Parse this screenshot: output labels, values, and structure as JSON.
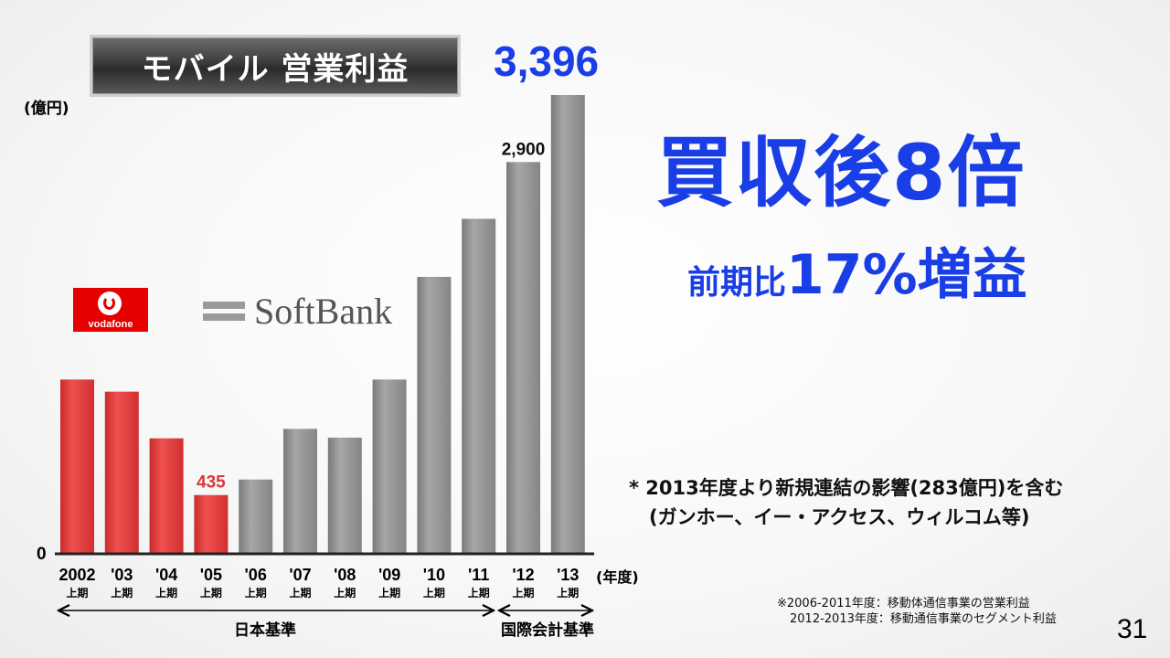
{
  "slide": {
    "title": "モバイル 営業利益",
    "unit": "(億円)",
    "big_value": "3,396",
    "headline": "買収後8倍",
    "sub_headline_a": "前期比",
    "sub_headline_b": "17%増益",
    "note_line1": "* 2013年度より新規連結の影響(283億円)を含む",
    "note_line2": "(ガンホー、イー・アクセス、ウィルコム等)",
    "footnote_line1": "※2006-2011年度：移動体通信事業の営業利益",
    "footnote_line2": "2012-2013年度：移動通信事業のセグメント利益",
    "page_number": "31",
    "vodafone_logo_text": "vodafone",
    "softbank_logo_text": "SoftBank",
    "x_unit": "(年度)",
    "period_label": "上期",
    "range_left_label": "日本基準",
    "range_right_label": "国際会計基準"
  },
  "chart_data": {
    "type": "bar",
    "categories": [
      "2002",
      "'03",
      "'04",
      "'05",
      "'06",
      "'07",
      "'08",
      "'09",
      "'10",
      "'11",
      "'12",
      "'13"
    ],
    "values": [
      1290,
      1200,
      855,
      435,
      550,
      925,
      860,
      1290,
      2050,
      2480,
      2900,
      3396
    ],
    "ylim": [
      0,
      3396
    ],
    "y_tick_labels": [
      "0"
    ],
    "data_labels": {
      "3": "435",
      "10": "2,900"
    },
    "colors": {
      "vodafone_era": "#e03a3a",
      "softbank_era": "#8c8c8c",
      "label_red": "#d9383a"
    },
    "grid": false
  }
}
